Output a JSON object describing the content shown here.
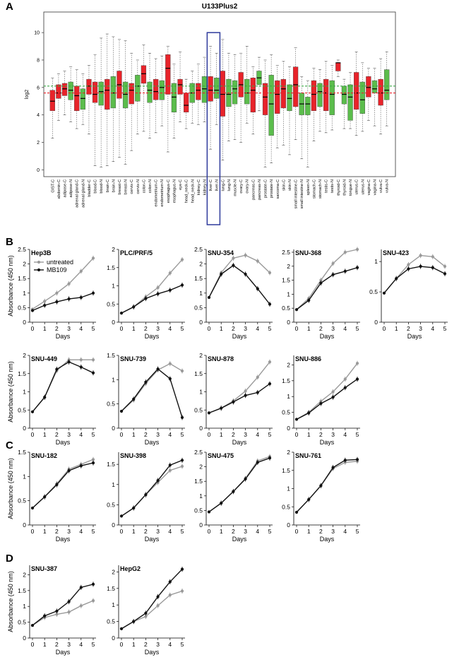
{
  "panels": {
    "a": "A",
    "b": "B",
    "c": "C",
    "d": "D"
  },
  "colors": {
    "tumor": "#e8232a",
    "normal": "#5bbd4c",
    "green_line": "#3aa845",
    "red_line": "#e8232a",
    "highlight": "#2e3a9c",
    "untreated": "#9a9a9a",
    "treated": "#111111"
  },
  "legend": {
    "untreated": "untreated",
    "treated": "MB109"
  },
  "chart_data": [
    {
      "type": "box",
      "title": "U133Plus2",
      "ylabel": "log2",
      "ylim": [
        -0.5,
        11.5
      ],
      "yticks": [
        0,
        2,
        4,
        6,
        8,
        10
      ],
      "reference_lines": {
        "green": 6.1,
        "red": 5.6
      },
      "highlight": [
        "liver-C",
        "liver-N"
      ],
      "categories": [
        "GIST-C",
        "abdomin-C",
        "adipose-C",
        "adipose-N",
        "adrenal gland-C",
        "adrenal gland-N",
        "bladder-C",
        "blood-C",
        "blood-N",
        "brain-C",
        "brain-N",
        "breast-C",
        "breast-N",
        "cervix-C",
        "cervix-N",
        "colon-C",
        "colon-N",
        "endometrium-C",
        "endometrium-N",
        "esophagus-C",
        "esophagus-N",
        "eye-C",
        "head_neck-C",
        "head_neck-N",
        "kidney-C",
        "kidney-N",
        "liver-C",
        "liver-N",
        "lung-C",
        "lung-N",
        "muscle-N",
        "ovary-C",
        "ovary-N",
        "pancreas-C",
        "pancreas-N",
        "prostate-C",
        "prostate-N",
        "sarcoma-C",
        "skin-C",
        "skin-N",
        "small intestine-C",
        "small intestine-N",
        "spleen-N",
        "stomach-C",
        "stomach-N",
        "testis-C",
        "testis-N",
        "thyroid-C",
        "thyroid-N",
        "tongue-N",
        "uterus-C",
        "uterus-N",
        "vagina-C",
        "vagina-N",
        "vulva-C",
        "vulva-N"
      ],
      "boxes": [
        [
          2.3,
          4.3,
          5.0,
          5.8,
          6.7
        ],
        [
          3.6,
          5.2,
          5.6,
          6.2,
          7.0
        ],
        [
          4.0,
          5.4,
          5.9,
          6.3,
          7.2
        ],
        [
          3.5,
          5.1,
          5.8,
          6.4,
          7.5
        ],
        [
          3.0,
          4.3,
          5.4,
          6.1,
          7.3
        ],
        [
          3.3,
          4.4,
          5.2,
          5.9,
          7.0
        ],
        [
          2.6,
          5.5,
          6.1,
          6.6,
          7.6
        ],
        [
          0.3,
          4.9,
          5.5,
          6.4,
          8.4
        ],
        [
          0.2,
          4.7,
          5.7,
          6.4,
          9.6
        ],
        [
          0.3,
          4.4,
          5.8,
          6.6,
          9.9
        ],
        [
          0.6,
          4.5,
          5.6,
          6.8,
          9.7
        ],
        [
          0.9,
          5.2,
          6.2,
          7.2,
          9.5
        ],
        [
          0.4,
          4.5,
          5.5,
          6.4,
          9.4
        ],
        [
          1.4,
          4.8,
          5.8,
          6.3,
          8.5
        ],
        [
          2.6,
          5.0,
          6.1,
          6.9,
          8.0
        ],
        [
          2.8,
          6.3,
          7.0,
          7.6,
          9.1
        ],
        [
          2.3,
          4.9,
          5.8,
          6.4,
          8.5
        ],
        [
          2.7,
          5.1,
          5.7,
          6.6,
          8.1
        ],
        [
          3.2,
          5.1,
          6.0,
          6.5,
          8.3
        ],
        [
          1.3,
          5.5,
          7.4,
          8.4,
          9.0
        ],
        [
          2.3,
          4.2,
          5.3,
          6.3,
          7.7
        ],
        [
          3.5,
          5.5,
          6.2,
          6.6,
          8.6
        ],
        [
          3.0,
          4.2,
          4.7,
          5.6,
          6.6
        ],
        [
          3.4,
          4.9,
          5.6,
          6.3,
          7.2
        ],
        [
          3.3,
          5.1,
          5.8,
          6.3,
          7.7
        ],
        [
          3.5,
          4.9,
          5.9,
          6.8,
          8.2
        ],
        [
          1.5,
          5.0,
          5.8,
          6.8,
          9.0
        ],
        [
          3.3,
          5.2,
          5.8,
          6.7,
          8.5
        ],
        [
          0.7,
          3.9,
          5.5,
          7.2,
          9.5
        ],
        [
          2.1,
          4.6,
          5.5,
          6.6,
          8.5
        ],
        [
          2.2,
          4.8,
          5.9,
          6.5,
          8.4
        ],
        [
          2.0,
          5.3,
          6.2,
          7.1,
          8.5
        ],
        [
          3.4,
          4.8,
          5.6,
          6.6,
          9.0
        ],
        [
          2.6,
          4.2,
          5.8,
          6.7,
          7.5
        ],
        [
          4.3,
          6.2,
          6.7,
          7.2,
          8.2
        ],
        [
          0.2,
          4.0,
          5.3,
          6.3,
          8.0
        ],
        [
          0.5,
          2.5,
          4.8,
          6.9,
          8.4
        ],
        [
          1.6,
          4.1,
          5.5,
          6.5,
          7.6
        ],
        [
          1.8,
          4.5,
          5.9,
          6.6,
          7.9
        ],
        [
          1.1,
          4.3,
          5.2,
          6.2,
          7.5
        ],
        [
          2.2,
          4.6,
          6.2,
          7.5,
          8.9
        ],
        [
          0.8,
          4.0,
          4.8,
          5.6,
          6.8
        ],
        [
          0.2,
          4.0,
          4.8,
          5.3,
          6.5
        ],
        [
          2.1,
          4.3,
          5.5,
          6.5,
          7.4
        ],
        [
          2.8,
          4.6,
          5.7,
          6.3,
          7.3
        ],
        [
          2.7,
          4.3,
          5.6,
          6.6,
          7.9
        ],
        [
          2.9,
          4.0,
          5.5,
          6.5,
          7.6
        ],
        [
          6.8,
          7.2,
          7.8,
          7.8,
          8.0
        ],
        [
          3.0,
          4.8,
          5.5,
          6.1,
          6.6
        ],
        [
          3.0,
          3.6,
          5.3,
          6.2,
          7.1
        ],
        [
          2.5,
          4.4,
          5.6,
          7.1,
          8.6
        ],
        [
          2.8,
          4.1,
          5.1,
          6.4,
          7.8
        ],
        [
          3.6,
          5.3,
          6.0,
          6.8,
          7.4
        ],
        [
          3.2,
          5.6,
          5.9,
          6.5,
          7.4
        ],
        [
          2.6,
          4.7,
          5.6,
          6.6,
          8.1
        ],
        [
          3.2,
          5.1,
          5.8,
          7.3,
          8.6
        ]
      ]
    },
    {
      "type": "line",
      "title": "Hep3B",
      "x": [
        0,
        1,
        2,
        3,
        4,
        5
      ],
      "ylim": [
        0,
        2.5
      ],
      "yticks": [
        0,
        0.5,
        1,
        1.5,
        2,
        2.5
      ],
      "ylabel": "Absorbance (450 nm)",
      "xlabel": "Days",
      "series": [
        {
          "name": "untreated",
          "values": [
            0.45,
            0.72,
            1.0,
            1.32,
            1.75,
            2.2
          ]
        },
        {
          "name": "MB109",
          "values": [
            0.4,
            0.58,
            0.7,
            0.8,
            0.85,
            1.0
          ]
        }
      ]
    },
    {
      "type": "line",
      "title": "PLC/PRF/5",
      "x": [
        0,
        1,
        2,
        3,
        4,
        5
      ],
      "ylim": [
        0,
        2.0
      ],
      "yticks": [
        0,
        0.5,
        1,
        1.5,
        2
      ],
      "ylabel": "",
      "xlabel": "Days",
      "series": [
        {
          "name": "untreated",
          "values": [
            0.25,
            0.42,
            0.7,
            0.95,
            1.35,
            1.72
          ]
        },
        {
          "name": "MB109",
          "values": [
            0.25,
            0.42,
            0.65,
            0.78,
            0.88,
            1.02
          ]
        }
      ]
    },
    {
      "type": "line",
      "title": "SNU-354",
      "x": [
        0,
        1,
        2,
        3,
        4,
        5
      ],
      "ylim": [
        0,
        2.5
      ],
      "yticks": [
        0,
        0.5,
        1,
        1.5,
        2,
        2.5
      ],
      "ylabel": "",
      "xlabel": "Days",
      "series": [
        {
          "name": "untreated",
          "values": [
            0.85,
            1.7,
            2.2,
            2.3,
            2.1,
            1.7
          ]
        },
        {
          "name": "MB109",
          "values": [
            0.85,
            1.65,
            1.95,
            1.65,
            1.15,
            0.62
          ]
        }
      ]
    },
    {
      "type": "line",
      "title": "SNU-368",
      "x": [
        0,
        1,
        2,
        3,
        4,
        5
      ],
      "ylim": [
        0,
        2.6
      ],
      "yticks": [
        0,
        0.5,
        1,
        1.5,
        2,
        2.5
      ],
      "ylabel": "",
      "xlabel": "Days",
      "series": [
        {
          "name": "untreated",
          "values": [
            0.45,
            0.85,
            1.5,
            2.1,
            2.5,
            2.6
          ]
        },
        {
          "name": "MB109",
          "values": [
            0.45,
            0.78,
            1.4,
            1.7,
            1.82,
            1.95
          ]
        }
      ]
    },
    {
      "type": "line",
      "title": "SNU-423",
      "x": [
        0,
        1,
        2,
        3,
        4,
        5
      ],
      "ylim": [
        0,
        1.2
      ],
      "yticks": [
        0,
        0.5,
        1
      ],
      "ylabel": "",
      "xlabel": "Days",
      "series": [
        {
          "name": "untreated",
          "values": [
            0.48,
            0.72,
            0.95,
            1.1,
            1.08,
            0.92
          ]
        },
        {
          "name": "MB109",
          "values": [
            0.48,
            0.72,
            0.88,
            0.92,
            0.9,
            0.8
          ]
        }
      ]
    },
    {
      "type": "line",
      "title": "SNU-449",
      "x": [
        0,
        1,
        2,
        3,
        4,
        5
      ],
      "ylim": [
        0,
        2.0
      ],
      "yticks": [
        0,
        0.5,
        1,
        1.5,
        2
      ],
      "ylabel": "Absorbance (450 nm)",
      "xlabel": "Days",
      "series": [
        {
          "name": "untreated",
          "values": [
            0.45,
            0.85,
            1.58,
            1.88,
            1.88,
            1.88
          ]
        },
        {
          "name": "MB109",
          "values": [
            0.45,
            0.85,
            1.62,
            1.82,
            1.68,
            1.52
          ]
        }
      ]
    },
    {
      "type": "line",
      "title": "SNU-739",
      "x": [
        0,
        1,
        2,
        3,
        4,
        5
      ],
      "ylim": [
        0,
        1.5
      ],
      "yticks": [
        0,
        0.5,
        1,
        1.5
      ],
      "ylabel": "",
      "xlabel": "Days",
      "series": [
        {
          "name": "untreated",
          "values": [
            0.35,
            0.58,
            0.92,
            1.2,
            1.33,
            1.18
          ]
        },
        {
          "name": "MB109",
          "values": [
            0.35,
            0.6,
            0.95,
            1.22,
            1.02,
            0.22
          ]
        }
      ]
    },
    {
      "type": "line",
      "title": "SNU-878",
      "x": [
        0,
        1,
        2,
        3,
        4,
        5
      ],
      "ylim": [
        0,
        2.0
      ],
      "yticks": [
        0,
        0.5,
        1,
        1.5,
        2
      ],
      "ylabel": "",
      "xlabel": "Days",
      "series": [
        {
          "name": "untreated",
          "values": [
            0.42,
            0.55,
            0.75,
            1.02,
            1.4,
            1.82
          ]
        },
        {
          "name": "MB109",
          "values": [
            0.42,
            0.55,
            0.72,
            0.9,
            0.98,
            1.22
          ]
        }
      ]
    },
    {
      "type": "line",
      "title": "SNU-886",
      "x": [
        0,
        1,
        2,
        3,
        4,
        5
      ],
      "ylim": [
        0,
        2.3
      ],
      "yticks": [
        0,
        0.5,
        1,
        1.5,
        2
      ],
      "ylabel": "",
      "xlabel": "Days",
      "series": [
        {
          "name": "untreated",
          "values": [
            0.28,
            0.5,
            0.85,
            1.15,
            1.55,
            2.05
          ]
        },
        {
          "name": "MB109",
          "values": [
            0.28,
            0.48,
            0.78,
            0.98,
            1.28,
            1.55
          ]
        }
      ]
    },
    {
      "type": "line",
      "title": "SNU-182",
      "x": [
        0,
        1,
        2,
        3,
        4,
        5
      ],
      "ylim": [
        0,
        1.5
      ],
      "yticks": [
        0,
        0.5,
        1,
        1.5
      ],
      "ylabel": "Absorbance (450 nm)",
      "xlabel": "Days",
      "series": [
        {
          "name": "untreated",
          "values": [
            0.35,
            0.58,
            0.85,
            1.15,
            1.25,
            1.35
          ]
        },
        {
          "name": "MB109",
          "values": [
            0.35,
            0.58,
            0.83,
            1.12,
            1.22,
            1.28
          ]
        }
      ]
    },
    {
      "type": "line",
      "title": "SNU-398",
      "x": [
        0,
        1,
        2,
        3,
        4,
        5
      ],
      "ylim": [
        0,
        1.8
      ],
      "yticks": [
        0,
        0.5,
        1,
        1.5
      ],
      "ylabel": "",
      "xlabel": "Days",
      "series": [
        {
          "name": "untreated",
          "values": [
            0.22,
            0.42,
            0.75,
            1.05,
            1.35,
            1.45
          ]
        },
        {
          "name": "MB109",
          "values": [
            0.22,
            0.42,
            0.75,
            1.1,
            1.48,
            1.6
          ]
        }
      ]
    },
    {
      "type": "line",
      "title": "SNU-475",
      "x": [
        0,
        1,
        2,
        3,
        4,
        5
      ],
      "ylim": [
        0,
        2.5
      ],
      "yticks": [
        0,
        0.5,
        1,
        1.5,
        2,
        2.5
      ],
      "ylabel": "",
      "xlabel": "Days",
      "series": [
        {
          "name": "untreated",
          "values": [
            0.45,
            0.75,
            1.15,
            1.6,
            2.2,
            2.35
          ]
        },
        {
          "name": "MB109",
          "values": [
            0.45,
            0.75,
            1.15,
            1.58,
            2.15,
            2.3
          ]
        }
      ]
    },
    {
      "type": "line",
      "title": "SNU-761",
      "x": [
        0,
        1,
        2,
        3,
        4,
        5
      ],
      "ylim": [
        0,
        2.0
      ],
      "yticks": [
        0,
        0.5,
        1,
        1.5,
        2
      ],
      "ylabel": "",
      "xlabel": "Days",
      "series": [
        {
          "name": "untreated",
          "values": [
            0.35,
            0.7,
            1.08,
            1.55,
            1.72,
            1.75
          ]
        },
        {
          "name": "MB109",
          "values": [
            0.35,
            0.7,
            1.08,
            1.58,
            1.78,
            1.8
          ]
        }
      ]
    },
    {
      "type": "line",
      "title": "SNU-387",
      "x": [
        0,
        1,
        2,
        3,
        4,
        5
      ],
      "ylim": [
        0,
        2.3
      ],
      "yticks": [
        0,
        0.5,
        1,
        1.5,
        2
      ],
      "ylabel": "Absorbance (450 nm)",
      "xlabel": "Days",
      "series": [
        {
          "name": "untreated",
          "values": [
            0.4,
            0.65,
            0.75,
            0.82,
            1.02,
            1.18
          ]
        },
        {
          "name": "MB109",
          "values": [
            0.4,
            0.7,
            0.85,
            1.15,
            1.6,
            1.7
          ]
        }
      ]
    },
    {
      "type": "line",
      "title": "HepG2",
      "x": [
        0,
        1,
        2,
        3,
        4,
        5
      ],
      "ylim": [
        0,
        2.2
      ],
      "yticks": [
        0,
        0.5,
        1,
        1.5,
        2
      ],
      "ylabel": "",
      "xlabel": "Days",
      "series": [
        {
          "name": "untreated",
          "values": [
            0.28,
            0.5,
            0.65,
            0.98,
            1.3,
            1.42
          ]
        },
        {
          "name": "MB109",
          "values": [
            0.28,
            0.5,
            0.75,
            1.25,
            1.7,
            2.08
          ]
        }
      ]
    }
  ]
}
